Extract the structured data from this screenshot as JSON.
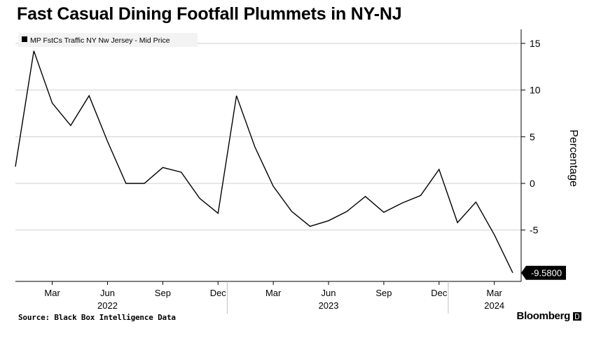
{
  "title": "Fast Casual Dining Footfall Plummets in NY-NJ",
  "source": "Source: Black Box Intelligence Data",
  "brand": "Bloomberg",
  "colors": {
    "line": "#000000",
    "grid": "#cfcfcf",
    "background": "#ffffff",
    "last_value_label_bg": "#000000",
    "last_value_label_text": "#ffffff"
  },
  "chart_data": {
    "type": "line",
    "title": "Fast Casual Dining Footfall Plummets in NY-NJ",
    "xlabel": "",
    "ylabel": "Percentage",
    "legend": {
      "placement": "top-left",
      "entries": [
        "MP FstCs Traffic NY Nw Jersey - Mid Price"
      ]
    },
    "x_axis": {
      "type": "date",
      "range": [
        "2022-01",
        "2024-04"
      ],
      "ticks": [
        {
          "date": "2022-03",
          "label": "Mar"
        },
        {
          "date": "2022-06",
          "label": "Jun"
        },
        {
          "date": "2022-09",
          "label": "Sep"
        },
        {
          "date": "2022-12",
          "label": "Dec"
        },
        {
          "date": "2023-03",
          "label": "Mar"
        },
        {
          "date": "2023-06",
          "label": "Jun"
        },
        {
          "date": "2023-09",
          "label": "Sep"
        },
        {
          "date": "2023-12",
          "label": "Dec"
        },
        {
          "date": "2024-03",
          "label": "Mar"
        }
      ],
      "year_labels": [
        {
          "date": "2022-06",
          "label": "2022"
        },
        {
          "date": "2023-06",
          "label": "2023"
        },
        {
          "date": "2024-03",
          "label": "2024"
        }
      ]
    },
    "y_axis": {
      "position": "right",
      "range": [
        -10.5,
        16.5
      ],
      "ticks": [
        15,
        10,
        5,
        0,
        -5
      ],
      "grid": true
    },
    "series": [
      {
        "name": "MP FstCs Traffic NY Nw Jersey - Mid Price",
        "x": [
          "2022-01",
          "2022-02",
          "2022-03",
          "2022-04",
          "2022-05",
          "2022-06",
          "2022-07",
          "2022-08",
          "2022-09",
          "2022-10",
          "2022-11",
          "2022-12",
          "2023-01",
          "2023-02",
          "2023-03",
          "2023-04",
          "2023-05",
          "2023-06",
          "2023-07",
          "2023-08",
          "2023-09",
          "2023-10",
          "2023-11",
          "2023-12",
          "2024-01",
          "2024-02",
          "2024-03",
          "2024-04"
        ],
        "values": [
          1.8,
          14.2,
          8.6,
          6.2,
          9.4,
          4.5,
          0.0,
          0.0,
          1.7,
          1.2,
          -1.6,
          -3.2,
          9.4,
          3.9,
          -0.3,
          -3.0,
          -4.6,
          -4.0,
          -3.0,
          -1.4,
          -3.1,
          -2.1,
          -1.3,
          1.5,
          -4.2,
          -2.0,
          -5.5,
          -9.58
        ]
      }
    ],
    "last_value_label": "-9.5800"
  }
}
